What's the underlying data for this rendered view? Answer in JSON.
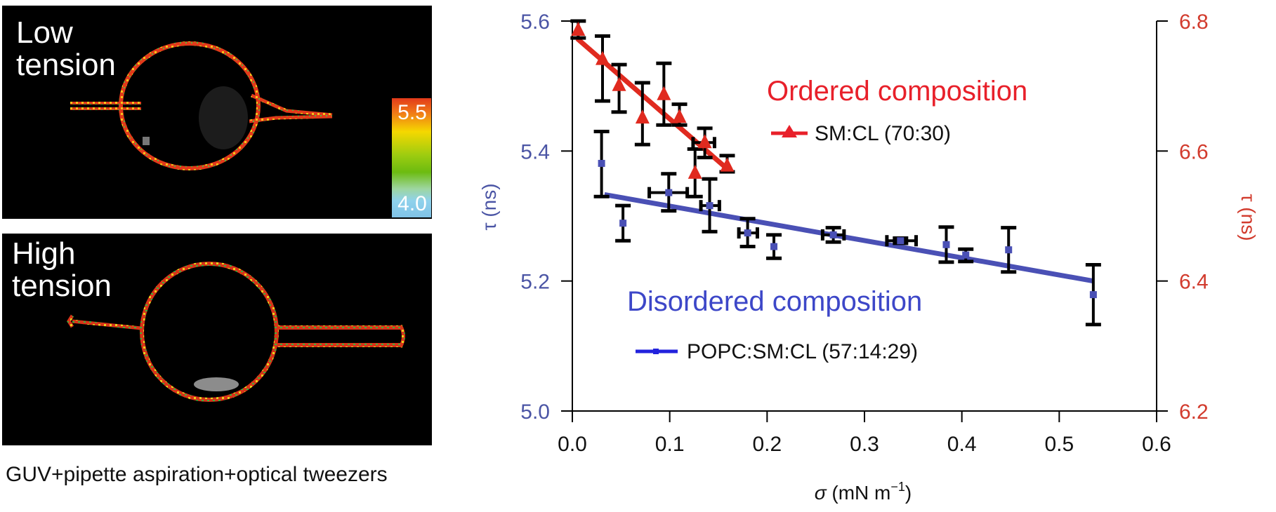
{
  "panels": {
    "top": {
      "label_line1": "Low",
      "label_line2": "tension"
    },
    "bottom": {
      "label_line1": "High",
      "label_line2": "tension"
    },
    "colorbar": {
      "max_label": "5.5",
      "min_label": "4.0",
      "max": 5.5,
      "min": 4.0
    },
    "caption": "GUV+pipette aspiration+optical tweezers"
  },
  "colors": {
    "ordered": "#e02a1f",
    "disordered": "#4a50b5",
    "errorbar": "#000000",
    "left_axis_text": "#4b55a5",
    "right_axis_text": "#d23b2d"
  },
  "chart_data": {
    "type": "scatter",
    "title": "",
    "xlabel": "σ (mN m⁻¹)",
    "xlabel_parts": {
      "sym": "σ",
      "unit": " (mN m",
      "sup": "−1",
      "close": ")"
    },
    "ylabel_left": "τ (ns)",
    "ylabel_right": "τ (ns)",
    "xlim": [
      0.0,
      0.6
    ],
    "ylim_left": [
      5.0,
      5.6
    ],
    "ylim_right": [
      6.2,
      6.8
    ],
    "xticks": [
      "0.0",
      "0.1",
      "0.2",
      "0.3",
      "0.4",
      "0.5",
      "0.6"
    ],
    "xtick_values": [
      0.0,
      0.1,
      0.2,
      0.3,
      0.4,
      0.5,
      0.6
    ],
    "yticks_left": [
      "5.0",
      "5.2",
      "5.4",
      "5.6"
    ],
    "ytick_left_values": [
      5.0,
      5.2,
      5.4,
      5.6
    ],
    "yticks_right": [
      "6.2",
      "6.4",
      "6.6",
      "6.8"
    ],
    "ytick_right_values": [
      6.2,
      6.4,
      6.6,
      6.8
    ],
    "grid": false,
    "annotations": {
      "ordered": "Ordered composition",
      "disordered": "Disordered composition"
    },
    "series": [
      {
        "name": "SM:CL (70:30)",
        "axis": "right",
        "marker": "triangle",
        "color": "#e02a1f",
        "points": [
          {
            "x": 0.006,
            "y": 6.786,
            "ylo": 6.774,
            "yhi": 6.8
          },
          {
            "x": 0.031,
            "y": 6.741,
            "ylo": 6.677,
            "yhi": 6.777
          },
          {
            "x": 0.048,
            "y": 6.701,
            "ylo": 6.66,
            "yhi": 6.733
          },
          {
            "x": 0.072,
            "y": 6.651,
            "ylo": 6.61,
            "yhi": 6.705
          },
          {
            "x": 0.094,
            "y": 6.687,
            "ylo": 6.64,
            "yhi": 6.735
          },
          {
            "x": 0.11,
            "y": 6.652,
            "ylo": 6.64,
            "yhi": 6.672
          },
          {
            "x": 0.126,
            "y": 6.566,
            "ylo": 6.53,
            "yhi": 6.603
          },
          {
            "x": 0.136,
            "y": 6.613,
            "ylo": 6.59,
            "yhi": 6.635,
            "xlo": 0.124,
            "xhi": 0.146
          },
          {
            "x": 0.159,
            "y": 6.577,
            "ylo": 6.568,
            "yhi": 6.593
          }
        ],
        "fit": {
          "x": [
            0.005,
            0.158
          ],
          "y": [
            6.773,
            6.574
          ]
        }
      },
      {
        "name": "POPC:SM:CL (57:14:29)",
        "axis": "left",
        "marker": "square",
        "color": "#4a50b5",
        "points": [
          {
            "x": 0.03,
            "y": 5.381,
            "ylo": 5.33,
            "yhi": 5.43
          },
          {
            "x": 0.052,
            "y": 5.289,
            "ylo": 5.262,
            "yhi": 5.316
          },
          {
            "x": 0.099,
            "y": 5.336,
            "ylo": 5.308,
            "yhi": 5.365,
            "xlo": 0.079,
            "xhi": 0.118
          },
          {
            "x": 0.141,
            "y": 5.316,
            "ylo": 5.276,
            "yhi": 5.357,
            "xlo": 0.132,
            "xhi": 0.151
          },
          {
            "x": 0.18,
            "y": 5.274,
            "ylo": 5.253,
            "yhi": 5.296,
            "xlo": 0.171,
            "xhi": 0.19
          },
          {
            "x": 0.207,
            "y": 5.253,
            "ylo": 5.235,
            "yhi": 5.271
          },
          {
            "x": 0.268,
            "y": 5.271,
            "ylo": 5.26,
            "yhi": 5.282,
            "xlo": 0.257,
            "xhi": 0.279
          },
          {
            "x": 0.337,
            "y": 5.262,
            "ylo": 5.258,
            "yhi": 5.266,
            "xlo": 0.323,
            "xhi": 0.353
          },
          {
            "x": 0.384,
            "y": 5.256,
            "ylo": 5.229,
            "yhi": 5.283
          },
          {
            "x": 0.404,
            "y": 5.24,
            "ylo": 5.23,
            "yhi": 5.249
          },
          {
            "x": 0.448,
            "y": 5.248,
            "ylo": 5.214,
            "yhi": 5.282
          },
          {
            "x": 0.535,
            "y": 5.179,
            "ylo": 5.133,
            "yhi": 5.225
          }
        ],
        "fit": {
          "x": [
            0.033,
            0.535
          ],
          "y": [
            5.333,
            5.2
          ]
        }
      }
    ],
    "legend": [
      {
        "label": "SM:CL (70:30)",
        "marker": "triangle",
        "color": "#e8202a"
      },
      {
        "label": "POPC:SM:CL (57:14:29)",
        "marker": "square",
        "color": "#2222dd"
      }
    ],
    "legend_placement": "inside, below each annotation"
  }
}
